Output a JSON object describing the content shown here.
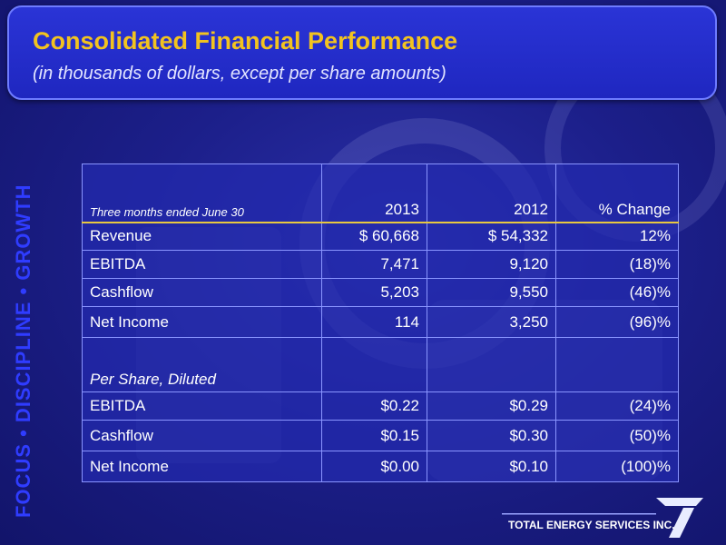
{
  "header": {
    "title": "Consolidated Financial Performance",
    "subtitle": "(in thousands of dollars, except per share amounts)"
  },
  "sidebar_tagline": "FOCUS • DISCIPLINE • GROWTH",
  "table": {
    "period_label": "Three months ended June 30",
    "columns": [
      "2013",
      "2012",
      "% Change"
    ],
    "rows": [
      {
        "label": "Revenue",
        "y2013": "$ 60,668",
        "y2012": "$ 54,332",
        "change": "12%"
      },
      {
        "label": "EBITDA",
        "y2013": "7,471",
        "y2012": "9,120",
        "change": "(18)%"
      },
      {
        "label": "Cashflow",
        "y2013": "5,203",
        "y2012": "9,550",
        "change": "(46)%"
      },
      {
        "label": "Net Income",
        "y2013": "114",
        "y2012": "3,250",
        "change": "(96)%"
      }
    ],
    "per_share_label": "Per Share, Diluted",
    "per_share_rows": [
      {
        "label": "EBITDA",
        "y2013": "$0.22",
        "y2012": "$0.29",
        "change": "(24)%"
      },
      {
        "label": "Cashflow",
        "y2013": "$0.15",
        "y2012": "$0.30",
        "change": "(50)%"
      },
      {
        "label": "Net Income",
        "y2013": "$0.00",
        "y2012": "$0.10",
        "change": "(100)%"
      }
    ]
  },
  "footer": {
    "company": "TOTAL ENERGY SERVICES INC."
  },
  "colors": {
    "title": "#f2c31f",
    "tagline": "#2f3cff",
    "header_rule": "#e8c840",
    "background": "#1c1f8a"
  }
}
